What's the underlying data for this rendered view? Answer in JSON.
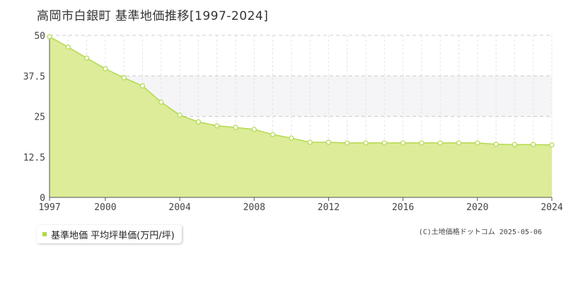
{
  "title": "高岡市白銀町 基準地価推移[1997-2024]",
  "legend_label": "基準地価 平均坪単価(万円/坪)",
  "copyright": "(C)土地価格ドットコム 2025-05-06",
  "colors": {
    "fill": "#dcec99",
    "line": "#b3d94a",
    "band": "#f5f5f7",
    "grid": "#cccccc",
    "axis": "#555555"
  },
  "chart_data": {
    "type": "area",
    "x": [
      1997,
      1998,
      1999,
      2000,
      2001,
      2002,
      2003,
      2004,
      2005,
      2006,
      2007,
      2008,
      2009,
      2010,
      2011,
      2012,
      2013,
      2014,
      2015,
      2016,
      2017,
      2018,
      2019,
      2020,
      2021,
      2022,
      2023,
      2024
    ],
    "series": [
      {
        "name": "基準地価 平均坪単価(万円/坪)",
        "values": [
          49.6,
          46.4,
          43.0,
          39.7,
          36.9,
          34.4,
          29.4,
          25.4,
          23.3,
          22.1,
          21.6,
          21.0,
          19.4,
          18.3,
          17.0,
          17.0,
          16.8,
          16.8,
          16.8,
          16.8,
          16.8,
          16.8,
          16.8,
          16.8,
          16.4,
          16.3,
          16.3,
          16.2
        ]
      }
    ],
    "xticks": [
      "1997",
      "2000",
      "2004",
      "2008",
      "2012",
      "2016",
      "2020",
      "2024"
    ],
    "yticks": [
      "0",
      "12.5",
      "25",
      "37.5",
      "50"
    ],
    "xlim": [
      1997,
      2024
    ],
    "ylim": [
      0,
      50
    ],
    "grid": true,
    "legend_position": "bottom-left"
  }
}
